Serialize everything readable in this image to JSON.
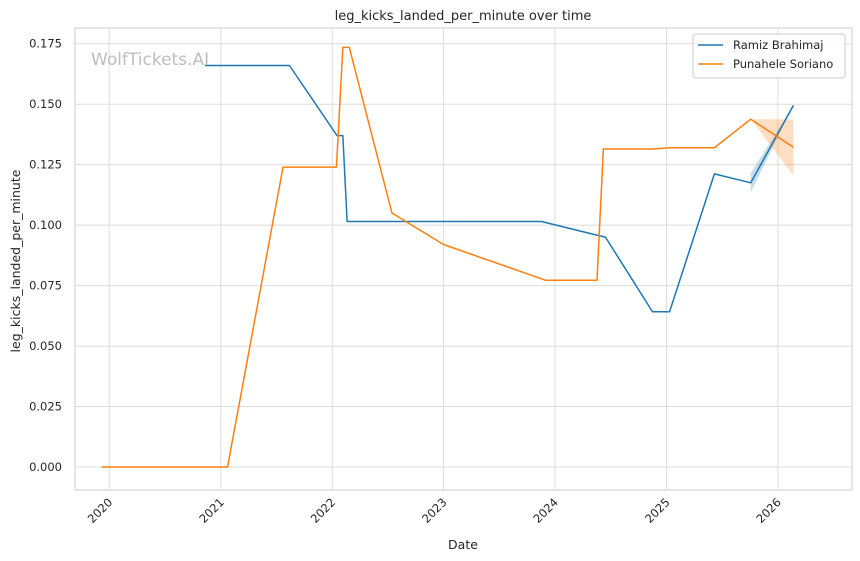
{
  "chart_data": {
    "type": "line",
    "title": "leg_kicks_landed_per_minute over time",
    "xlabel": "Date",
    "ylabel": "leg_kicks_landed_per_minute",
    "watermark": "WolfTickets.AI",
    "grid": true,
    "legend_position": "top-right",
    "xlim": [
      "2019-09-11",
      "2026-09-01"
    ],
    "ylim": [
      -0.0095,
      0.1815
    ],
    "x_ticks": [
      "2020",
      "2021",
      "2022",
      "2023",
      "2024",
      "2025",
      "2026"
    ],
    "y_ticks": [
      "0.000",
      "0.025",
      "0.050",
      "0.075",
      "0.100",
      "0.125",
      "0.150",
      "0.175"
    ],
    "series": [
      {
        "name": "Ramiz Brahimaj",
        "color": "#1f77b4",
        "points": [
          [
            "2020-11-10",
            0.166
          ],
          [
            "2021-08-14",
            0.166
          ],
          [
            "2022-01-17",
            0.137
          ],
          [
            "2022-02-05",
            0.137
          ],
          [
            "2022-02-19",
            0.1015
          ],
          [
            "2023-11-18",
            0.1015
          ],
          [
            "2024-06-15",
            0.095
          ],
          [
            "2024-11-16",
            0.0642
          ],
          [
            "2025-01-11",
            0.0642
          ],
          [
            "2025-06-07",
            0.1212
          ],
          [
            "2025-10-04",
            0.1175
          ],
          [
            "2026-02-21",
            0.1495
          ]
        ],
        "band": [
          [
            "2025-10-04",
            0.1135,
            0.1215
          ],
          [
            "2026-02-21",
            0.1495,
            0.1495
          ]
        ]
      },
      {
        "name": "Punahele Soriano",
        "color": "#ff7f0e",
        "points": [
          [
            "2019-12-07",
            0.0
          ],
          [
            "2021-01-23",
            0.0
          ],
          [
            "2021-07-24",
            0.124
          ],
          [
            "2022-01-15",
            0.124
          ],
          [
            "2022-02-05",
            0.1735
          ],
          [
            "2022-02-26",
            0.1735
          ],
          [
            "2022-07-16",
            0.105
          ],
          [
            "2023-01-01",
            0.092
          ],
          [
            "2023-12-02",
            0.0772
          ],
          [
            "2024-05-18",
            0.0772
          ],
          [
            "2024-06-08",
            0.1315
          ],
          [
            "2024-11-16",
            0.1315
          ],
          [
            "2025-01-11",
            0.132
          ],
          [
            "2025-06-07",
            0.132
          ],
          [
            "2025-10-04",
            0.1438
          ],
          [
            "2026-02-21",
            0.1322
          ]
        ],
        "band": [
          [
            "2025-10-04",
            0.1438,
            0.1438
          ],
          [
            "2026-02-21",
            0.1205,
            0.1438
          ]
        ]
      }
    ]
  }
}
